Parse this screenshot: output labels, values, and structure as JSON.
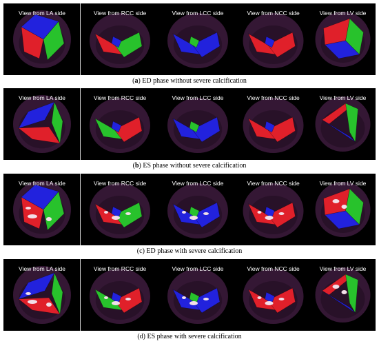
{
  "view_titles": [
    "View from LA side",
    "View from RCC side",
    "View from LCC side",
    "View from NCC side",
    "View from LV side"
  ],
  "panels": [
    {
      "caption_label": "a",
      "caption_label_bold": true,
      "caption_text": " ED phase without severe calcification"
    },
    {
      "caption_label": "b",
      "caption_label_bold": true,
      "caption_text": " ES phase without severe calcification"
    },
    {
      "caption_label": "c",
      "caption_label_bold": false,
      "caption_text": " ED phase with severe calcification"
    },
    {
      "caption_label": "d",
      "caption_label_bold": false,
      "caption_text": " ES phase with severe calcification"
    }
  ],
  "colors": {
    "red": "#e0202a",
    "green": "#28c22c",
    "blue": "#2222dd",
    "tissue": "#3a1a3a",
    "calcification": "#f2dfe8"
  }
}
